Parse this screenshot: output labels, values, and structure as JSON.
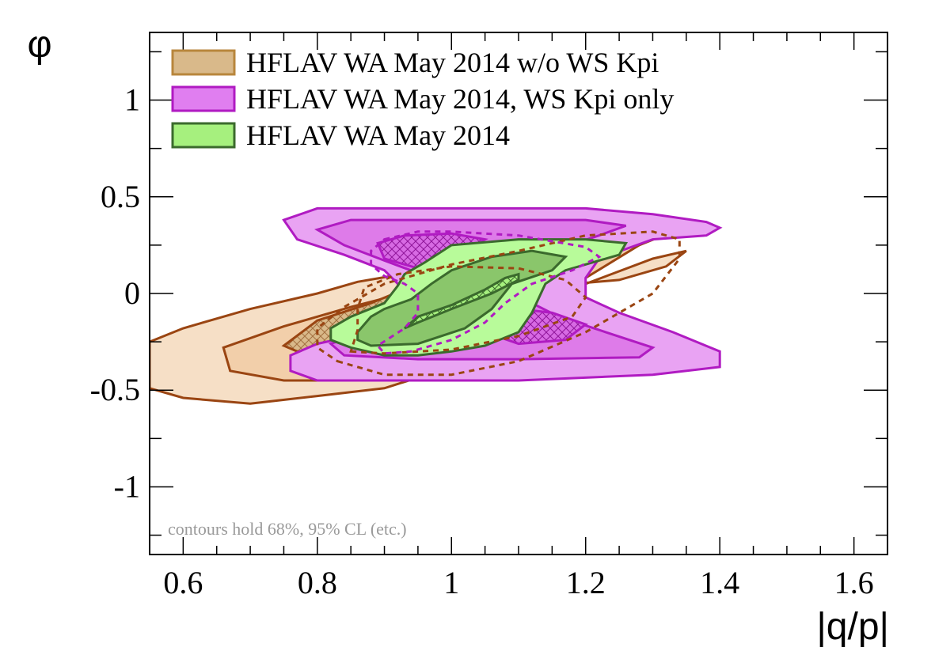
{
  "chart_data": {
    "type": "contour",
    "xlabel": "|q/p|",
    "ylabel": "φ",
    "xlim": [
      0.55,
      1.65
    ],
    "ylim": [
      -1.35,
      1.35
    ],
    "x_ticks": [
      0.6,
      0.8,
      1.0,
      1.2,
      1.4,
      1.6
    ],
    "x_tick_labels": [
      "0.6",
      "0.8",
      "1",
      "1.2",
      "1.4",
      "1.6"
    ],
    "y_ticks": [
      -1,
      -0.5,
      0,
      0.5,
      1
    ],
    "y_tick_labels": [
      "-1",
      "-0.5",
      "0",
      "0.5",
      "1"
    ],
    "legend_placement": "top-left",
    "annotation": "contours hold 68%, 95% CL (etc.)",
    "series": [
      {
        "name": "HFLAV WA May 2014 w/o WS Kpi",
        "fill_colors": [
          "#f6dfc6",
          "#f2cfaa",
          "#d9b98a"
        ],
        "line_color": "#9a4512",
        "legend_fill": "#d9b98a",
        "legend_line": "#b8863c",
        "contours": [
          [
            [
              0.55,
              -0.25
            ],
            [
              0.6,
              -0.18
            ],
            [
              0.7,
              -0.08
            ],
            [
              0.8,
              0.0
            ],
            [
              0.86,
              0.06
            ],
            [
              0.91,
              0.09
            ],
            [
              0.97,
              0.09
            ],
            [
              1.05,
              0.05
            ],
            [
              1.15,
              0.04
            ],
            [
              1.25,
              0.07
            ],
            [
              1.32,
              0.14
            ],
            [
              1.35,
              0.22
            ],
            [
              1.3,
              0.18
            ],
            [
              1.2,
              0.05
            ],
            [
              1.1,
              -0.15
            ],
            [
              1.0,
              -0.38
            ],
            [
              0.9,
              -0.49
            ],
            [
              0.8,
              -0.53
            ],
            [
              0.7,
              -0.57
            ],
            [
              0.6,
              -0.54
            ],
            [
              0.55,
              -0.49
            ]
          ],
          [
            [
              0.66,
              -0.28
            ],
            [
              0.75,
              -0.17
            ],
            [
              0.85,
              -0.07
            ],
            [
              0.95,
              0.02
            ],
            [
              1.05,
              0.1
            ],
            [
              1.15,
              0.18
            ],
            [
              1.27,
              0.28
            ],
            [
              1.33,
              0.32
            ],
            [
              1.28,
              0.25
            ],
            [
              1.2,
              0.08
            ],
            [
              1.12,
              -0.1
            ],
            [
              1.03,
              -0.3
            ],
            [
              0.95,
              -0.42
            ],
            [
              0.85,
              -0.45
            ],
            [
              0.75,
              -0.45
            ],
            [
              0.67,
              -0.4
            ]
          ],
          [
            [
              0.75,
              -0.27
            ],
            [
              0.8,
              -0.14
            ],
            [
              0.88,
              -0.05
            ],
            [
              0.95,
              0.05
            ],
            [
              1.03,
              0.12
            ],
            [
              1.13,
              0.15
            ],
            [
              1.2,
              0.1
            ],
            [
              1.15,
              0.0
            ],
            [
              1.05,
              -0.12
            ],
            [
              0.95,
              -0.24
            ],
            [
              0.85,
              -0.3
            ],
            [
              0.77,
              -0.3
            ]
          ]
        ]
      },
      {
        "name": "HFLAV WA May 2014, WS Kpi only",
        "fill_colors": [
          "#e9a3f3",
          "#de7be9",
          "#cd5ad8"
        ],
        "line_color": "#b01bc2",
        "legend_fill": "#e07ef0",
        "legend_line": "#b01bc2",
        "contours": [
          [
            [
              0.75,
              0.38
            ],
            [
              0.8,
              0.44
            ],
            [
              0.9,
              0.44
            ],
            [
              1.0,
              0.44
            ],
            [
              1.1,
              0.44
            ],
            [
              1.2,
              0.44
            ],
            [
              1.3,
              0.41
            ],
            [
              1.38,
              0.37
            ],
            [
              1.4,
              0.34
            ],
            [
              1.38,
              0.3
            ],
            [
              1.3,
              0.28
            ],
            [
              1.22,
              0.18
            ],
            [
              1.2,
              0.08
            ],
            [
              1.2,
              -0.02
            ],
            [
              1.25,
              -0.1
            ],
            [
              1.33,
              -0.2
            ],
            [
              1.4,
              -0.3
            ],
            [
              1.4,
              -0.38
            ],
            [
              1.3,
              -0.42
            ],
            [
              1.1,
              -0.45
            ],
            [
              0.9,
              -0.45
            ],
            [
              0.8,
              -0.45
            ],
            [
              0.76,
              -0.4
            ],
            [
              0.76,
              -0.32
            ],
            [
              0.8,
              -0.26
            ],
            [
              0.88,
              -0.2
            ],
            [
              0.92,
              -0.1
            ],
            [
              0.92,
              0.05
            ],
            [
              0.9,
              0.12
            ],
            [
              0.84,
              0.2
            ],
            [
              0.77,
              0.28
            ]
          ],
          [
            [
              0.8,
              0.33
            ],
            [
              0.85,
              0.38
            ],
            [
              1.0,
              0.38
            ],
            [
              1.2,
              0.38
            ],
            [
              1.26,
              0.35
            ],
            [
              1.22,
              0.3
            ],
            [
              1.15,
              0.22
            ],
            [
              1.12,
              0.1
            ],
            [
              1.12,
              -0.05
            ],
            [
              1.16,
              -0.12
            ],
            [
              1.23,
              -0.2
            ],
            [
              1.3,
              -0.28
            ],
            [
              1.28,
              -0.33
            ],
            [
              1.1,
              -0.34
            ],
            [
              0.95,
              -0.34
            ],
            [
              0.84,
              -0.32
            ],
            [
              0.82,
              -0.26
            ],
            [
              0.87,
              -0.2
            ],
            [
              0.93,
              -0.15
            ],
            [
              0.98,
              -0.08
            ],
            [
              1.0,
              0.0
            ],
            [
              0.97,
              0.08
            ],
            [
              0.9,
              0.17
            ],
            [
              0.84,
              0.25
            ]
          ],
          [
            [
              0.89,
              0.26
            ],
            [
              0.93,
              0.3
            ],
            [
              1.0,
              0.31
            ],
            [
              1.05,
              0.28
            ],
            [
              1.0,
              0.18
            ],
            [
              0.95,
              0.13
            ],
            [
              0.9,
              0.18
            ]
          ],
          [
            [
              1.05,
              -0.08
            ],
            [
              1.1,
              -0.08
            ],
            [
              1.15,
              -0.1
            ],
            [
              1.2,
              -0.16
            ],
            [
              1.17,
              -0.24
            ],
            [
              1.1,
              -0.26
            ],
            [
              1.05,
              -0.2
            ]
          ]
        ]
      },
      {
        "name": "HFLAV WA May 2014",
        "fill_colors": [
          "#b8fb9a",
          "#8ac66b",
          "#a6f07e"
        ],
        "line_color": "#3b6a2d",
        "legend_fill": "#a6f07e",
        "legend_line": "#3b6a2d",
        "contours": [
          [
            [
              0.82,
              -0.18
            ],
            [
              0.85,
              -0.12
            ],
            [
              0.9,
              -0.05
            ],
            [
              0.92,
              0.04
            ],
            [
              0.93,
              0.1
            ],
            [
              0.96,
              0.16
            ],
            [
              1.0,
              0.25
            ],
            [
              1.1,
              0.28
            ],
            [
              1.2,
              0.28
            ],
            [
              1.26,
              0.26
            ],
            [
              1.25,
              0.2
            ],
            [
              1.17,
              0.12
            ],
            [
              1.14,
              0.05
            ],
            [
              1.12,
              -0.1
            ],
            [
              1.1,
              -0.2
            ],
            [
              1.05,
              -0.27
            ],
            [
              1.0,
              -0.3
            ],
            [
              0.95,
              -0.32
            ],
            [
              0.9,
              -0.32
            ],
            [
              0.85,
              -0.28
            ],
            [
              0.82,
              -0.24
            ]
          ],
          [
            [
              0.86,
              -0.2
            ],
            [
              0.88,
              -0.12
            ],
            [
              0.9,
              -0.08
            ],
            [
              0.94,
              -0.03
            ],
            [
              0.97,
              0.05
            ],
            [
              1.0,
              0.12
            ],
            [
              1.06,
              0.19
            ],
            [
              1.12,
              0.22
            ],
            [
              1.17,
              0.19
            ],
            [
              1.15,
              0.12
            ],
            [
              1.09,
              0.05
            ],
            [
              1.06,
              -0.08
            ],
            [
              1.02,
              -0.18
            ],
            [
              0.95,
              -0.26
            ],
            [
              0.88,
              -0.27
            ],
            [
              0.86,
              -0.24
            ]
          ],
          [
            [
              0.93,
              -0.18
            ],
            [
              0.95,
              -0.12
            ],
            [
              1.0,
              -0.06
            ],
            [
              1.05,
              0.02
            ],
            [
              1.08,
              0.08
            ],
            [
              1.1,
              0.1
            ],
            [
              1.1,
              0.07
            ],
            [
              1.06,
              0.0
            ],
            [
              1.0,
              -0.08
            ],
            [
              0.95,
              -0.15
            ],
            [
              0.93,
              -0.18
            ]
          ]
        ]
      }
    ],
    "dashed_contours": [
      {
        "color": "#9a4512",
        "points": [
          [
            0.83,
            -0.35
          ],
          [
            0.9,
            -0.42
          ],
          [
            1.0,
            -0.42
          ],
          [
            1.1,
            -0.35
          ],
          [
            1.2,
            -0.2
          ],
          [
            1.3,
            0.0
          ],
          [
            1.34,
            0.18
          ],
          [
            1.34,
            0.28
          ],
          [
            1.3,
            0.32
          ],
          [
            1.2,
            0.3
          ],
          [
            1.1,
            0.22
          ],
          [
            1.0,
            0.15
          ],
          [
            0.9,
            0.05
          ],
          [
            0.84,
            -0.07
          ],
          [
            0.8,
            -0.18
          ],
          [
            0.8,
            -0.28
          ]
        ]
      },
      {
        "color": "#9a4512",
        "points": [
          [
            0.85,
            -0.3
          ],
          [
            0.9,
            -0.31
          ],
          [
            1.0,
            -0.29
          ],
          [
            1.1,
            -0.22
          ],
          [
            1.18,
            -0.12
          ],
          [
            1.2,
            -0.02
          ],
          [
            1.17,
            0.07
          ],
          [
            1.1,
            0.13
          ],
          [
            1.0,
            0.14
          ],
          [
            0.92,
            0.1
          ],
          [
            0.87,
            0.03
          ],
          [
            0.86,
            -0.08
          ],
          [
            0.86,
            -0.19
          ]
        ]
      },
      {
        "color": "#b01bc2",
        "points": [
          [
            0.9,
            0.28
          ],
          [
            0.95,
            0.32
          ],
          [
            1.0,
            0.32
          ],
          [
            1.1,
            0.3
          ],
          [
            1.2,
            0.24
          ],
          [
            1.22,
            0.19
          ],
          [
            1.18,
            0.12
          ],
          [
            1.12,
            0.05
          ],
          [
            1.08,
            -0.05
          ],
          [
            1.05,
            -0.15
          ],
          [
            1.0,
            -0.24
          ],
          [
            0.94,
            -0.3
          ],
          [
            0.9,
            -0.31
          ],
          [
            0.89,
            -0.27
          ],
          [
            0.93,
            -0.18
          ],
          [
            0.95,
            -0.1
          ],
          [
            0.95,
            0.0
          ],
          [
            0.93,
            0.05
          ],
          [
            0.9,
            0.09
          ],
          [
            0.88,
            0.15
          ],
          [
            0.88,
            0.22
          ]
        ]
      }
    ]
  }
}
